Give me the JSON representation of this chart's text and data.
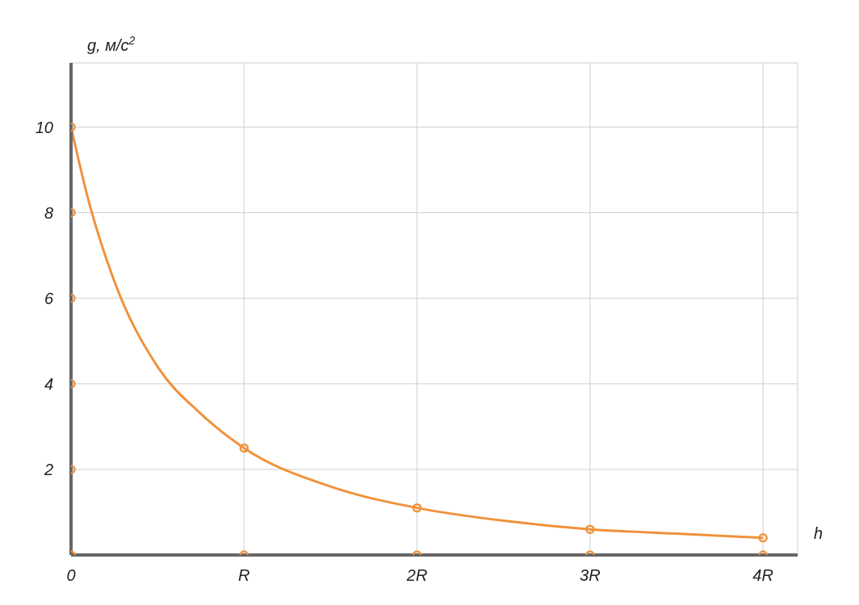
{
  "chart_data": {
    "type": "line",
    "xlabel": "h",
    "ylabel": "g, м/с$^{2}$",
    "xlim": [
      0,
      4.2
    ],
    "ylim": [
      0,
      11.5
    ],
    "xticks": [
      0,
      {
        "value": 1,
        "label": "R"
      },
      {
        "value": 2,
        "label": "2R"
      },
      {
        "value": 3,
        "label": "3R"
      },
      {
        "value": 4,
        "label": "4R"
      }
    ],
    "yticks": [
      2,
      4,
      6,
      8,
      10
    ],
    "grid": true,
    "series": [
      {
        "marker": "none",
        "color": "#f0923c",
        "x": [
          0,
          0.1,
          0.25,
          0.5,
          0.75,
          1,
          1.5,
          2,
          2.5,
          3,
          3.5,
          4
        ],
        "values": [
          10,
          8.3,
          6.4,
          4.4,
          3.3,
          2.5,
          1.6,
          1.1,
          0.8,
          0.6,
          0.5,
          0.4
        ]
      },
      {
        "type": "scatter",
        "marker": "circle",
        "color": "#f0923c",
        "x": [
          0,
          1,
          2,
          3,
          4
        ],
        "values": [
          10,
          2.5,
          1.1,
          0.6,
          0.4
        ]
      },
      {
        "type": "scatter",
        "marker": "circle",
        "color": "#f0923c",
        "x": [
          0,
          0,
          0,
          0,
          0,
          1,
          2,
          3,
          4
        ],
        "values": [
          0,
          2,
          4,
          6,
          8,
          0,
          0,
          0,
          0
        ]
      }
    ]
  }
}
